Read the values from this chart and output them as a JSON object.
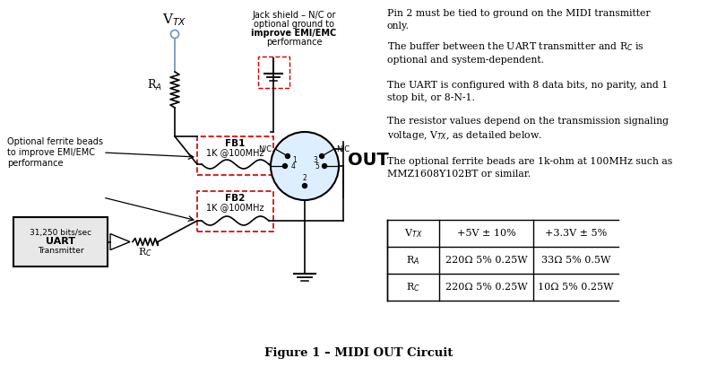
{
  "figure_caption": "Figure 1 – MIDI OUT Circuit",
  "background_color": "#ffffff",
  "figsize": [
    8.0,
    4.09
  ],
  "dpi": 100,
  "note1": "Pin 2 must be tied to ground on the MIDI transmitter\nonly.",
  "note2": "The buffer between the UART transmitter and R$_C$ is\noptional and system-dependent.",
  "note3": "The UART is configured with 8 data bits, no parity, and 1\nstop bit, or 8-N-1.",
  "note4": "The resistor values depend on the transmission signaling\nvoltage, V$_{TX}$, as detailed below.",
  "note5": "The optional ferrite beads are 1k-ohm at 100MHz such as\nMMZ1608Y102BT or similar.",
  "table_header_col1": "V$_{TX}$",
  "table_header_col2": "+5V ± 10%",
  "table_header_col3": "+3.3V ± 5%",
  "table_r1c1": "R$_A$",
  "table_r1c2": "220Ω 5% 0.25W",
  "table_r1c3": "33Ω 5% 0.5W",
  "table_r2c1": "R$_C$",
  "table_r2c2": "220Ω 5% 0.25W",
  "table_r2c3": "10Ω 5% 0.25W",
  "text_color": "#000000",
  "dashed_box_color": "#cc0000",
  "vtx_line_color": "#7799bb",
  "din_fill_color": "#ddeeff",
  "uart_fill_color": "#e8e8e8",
  "jack_label": "Jack shield – N/C or\noptional ground to\nimprove EMI/EMC\nperformance",
  "vtx_label": "V$_{TX}$",
  "out_label": "OUT",
  "ferrite_label": "Optional ferrite beads\nto improve EMI/EMC\nperformance",
  "uart_line1": "31,250 bits/sec",
  "uart_line2": "UART",
  "uart_line3": "Transmitter",
  "fb1_label1": "FB1",
  "fb1_label2": "1K @100MHz",
  "fb2_label1": "FB2",
  "fb2_label2": "1K @100MHz",
  "ra_label": "R$_A$",
  "rc_label": "R$_C$",
  "nc1_label": "N/C",
  "nc3_label": "N/C"
}
